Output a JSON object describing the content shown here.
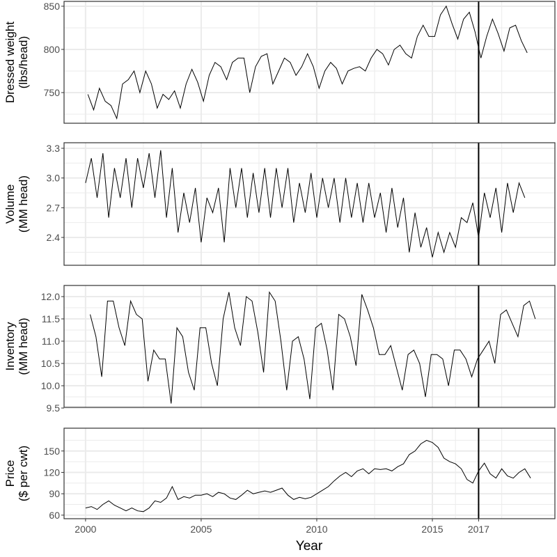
{
  "chart_data": [
    {
      "type": "line",
      "ylabel": [
        "Dressed weight",
        "(lbs/head)"
      ],
      "ylim": [
        714.5,
        855.6
      ],
      "yticks": [
        750,
        800,
        850
      ],
      "start": 2000.1,
      "values": [
        748,
        730,
        755,
        740,
        735,
        720,
        760,
        765,
        775,
        750,
        775,
        760,
        732,
        748,
        742,
        752,
        732,
        760,
        777,
        762,
        740,
        770,
        785,
        780,
        765,
        785,
        790,
        790,
        750,
        780,
        792,
        795,
        760,
        775,
        790,
        785,
        770,
        780,
        795,
        780,
        755,
        775,
        785,
        778,
        760,
        775,
        778,
        780,
        775,
        790,
        800,
        795,
        782,
        800,
        805,
        795,
        790,
        815,
        828,
        815,
        815,
        840,
        850,
        830,
        812,
        835,
        843,
        820,
        790,
        815,
        835,
        818,
        798,
        825,
        828,
        810,
        796
      ]
    },
    {
      "type": "line",
      "ylabel": [
        "Volume",
        "(MM head)"
      ],
      "ylim": [
        2.119,
        3.356
      ],
      "yticks": [
        "2.4",
        "2.7",
        "3.0",
        "3.3"
      ],
      "start": 2000.0,
      "values": [
        2.95,
        3.2,
        2.8,
        3.25,
        2.6,
        3.1,
        2.8,
        3.2,
        2.7,
        3.2,
        2.9,
        3.25,
        2.8,
        3.28,
        2.6,
        3.1,
        2.45,
        2.85,
        2.55,
        2.9,
        2.35,
        2.8,
        2.65,
        2.9,
        2.35,
        3.1,
        2.7,
        3.1,
        2.6,
        3.05,
        2.65,
        3.1,
        2.6,
        3.1,
        2.7,
        3.1,
        2.55,
        2.95,
        2.65,
        3.05,
        2.6,
        3.0,
        2.7,
        3.0,
        2.55,
        3.0,
        2.6,
        2.95,
        2.55,
        2.95,
        2.6,
        2.85,
        2.45,
        2.9,
        2.5,
        2.8,
        2.25,
        2.65,
        2.3,
        2.5,
        2.2,
        2.45,
        2.25,
        2.45,
        2.3,
        2.6,
        2.55,
        2.75,
        2.4,
        2.85,
        2.6,
        2.9,
        2.45,
        2.95,
        2.65,
        2.95,
        2.8
      ]
    },
    {
      "type": "line",
      "ylabel": [
        "Inventory",
        "(MM head)"
      ],
      "ylim": [
        9.516,
        12.25
      ],
      "yticks": [
        "9.5",
        "10.0",
        "10.5",
        "11.0",
        "11.5",
        "12.0"
      ],
      "start": 2000.2,
      "values": [
        11.6,
        11.1,
        10.2,
        11.9,
        11.9,
        11.3,
        10.9,
        11.9,
        11.6,
        11.5,
        10.1,
        10.8,
        10.6,
        10.6,
        9.6,
        11.3,
        11.1,
        10.3,
        9.9,
        11.3,
        11.3,
        10.5,
        10.0,
        11.5,
        12.1,
        11.3,
        10.9,
        12.0,
        11.9,
        11.2,
        10.3,
        12.1,
        11.9,
        11.0,
        9.9,
        11.0,
        11.1,
        10.6,
        9.7,
        11.3,
        11.4,
        10.8,
        9.9,
        11.6,
        11.5,
        11.1,
        10.45,
        12.05,
        11.7,
        11.3,
        10.7,
        10.7,
        10.9,
        10.4,
        9.9,
        10.7,
        10.8,
        10.5,
        9.75,
        10.7,
        10.7,
        10.6,
        10.0,
        10.8,
        10.8,
        10.6,
        10.2,
        10.6,
        10.8,
        11.0,
        10.5,
        11.6,
        11.7,
        11.4,
        11.1,
        11.8,
        11.9,
        11.5
      ]
    },
    {
      "type": "line",
      "ylabel": [
        "Price",
        "($ per cwt)"
      ],
      "ylim": [
        55,
        182
      ],
      "yticks": [
        60,
        90,
        120,
        150
      ],
      "start": 2000.0,
      "values": [
        70,
        72,
        68,
        75,
        80,
        74,
        70,
        66,
        70,
        66,
        65,
        70,
        80,
        78,
        84,
        100,
        82,
        86,
        84,
        88,
        88,
        90,
        86,
        92,
        90,
        84,
        82,
        88,
        95,
        90,
        92,
        94,
        92,
        95,
        98,
        88,
        82,
        85,
        83,
        85,
        90,
        95,
        100,
        108,
        115,
        120,
        114,
        122,
        125,
        118,
        125,
        124,
        125,
        122,
        128,
        132,
        145,
        150,
        160,
        165,
        162,
        155,
        140,
        135,
        132,
        125,
        110,
        105,
        122,
        133,
        118,
        112,
        125,
        115,
        112,
        120,
        125,
        112
      ]
    }
  ],
  "x": {
    "label": "Year",
    "ticks": [
      2000,
      2005,
      2010,
      2015,
      2017
    ],
    "xlim": [
      1999.07,
      2020.3
    ]
  },
  "vline": 2017,
  "colors": {
    "line": "#000000",
    "grid": "#ebebeb",
    "panel_border": "#333333"
  }
}
